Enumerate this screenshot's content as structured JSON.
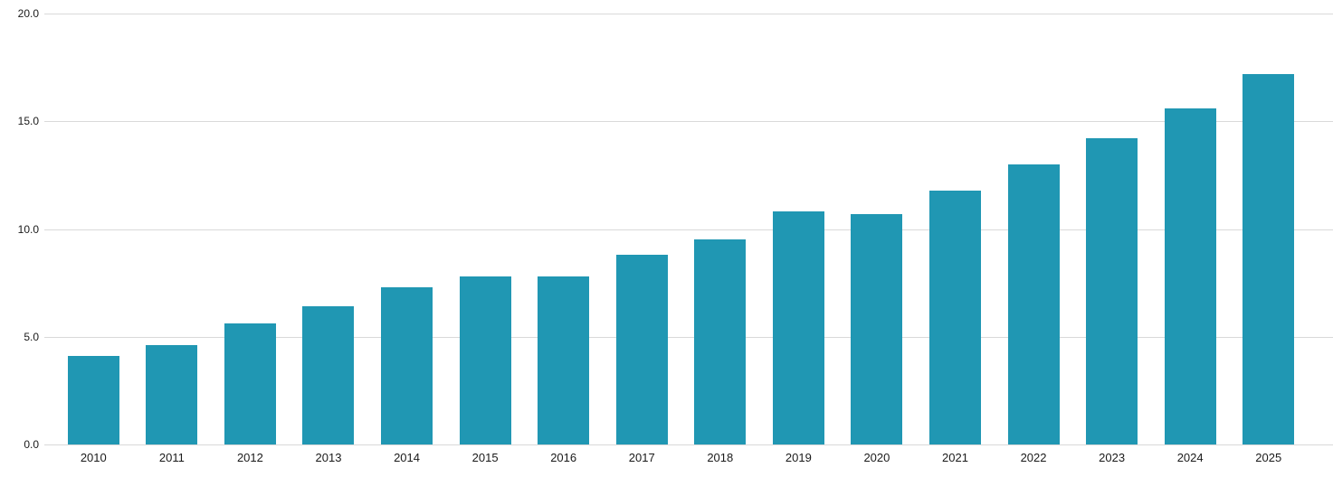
{
  "chart_data": {
    "type": "bar",
    "title": "",
    "xlabel": "",
    "ylabel": "",
    "categories": [
      "2010",
      "2011",
      "2012",
      "2013",
      "2014",
      "2015",
      "2016",
      "2017",
      "2018",
      "2019",
      "2020",
      "2021",
      "2022",
      "2023",
      "2024",
      "2025"
    ],
    "values": [
      4.1,
      4.6,
      5.6,
      6.4,
      7.3,
      7.8,
      7.8,
      8.8,
      9.5,
      10.8,
      10.7,
      11.8,
      13.0,
      14.2,
      15.6,
      17.2
    ],
    "ylim": [
      0,
      20
    ],
    "yticks": [
      0,
      5,
      10,
      15,
      20
    ],
    "ytick_labels": [
      "0.0",
      "5.0",
      "10.0",
      "15.0",
      "20.0"
    ],
    "grid": true,
    "legend_position": "none",
    "bar_color": "#2097b3",
    "gridline_color": "#d9d9d9",
    "axis_text_color": "#1a1a1a",
    "background_color": "#ffffff"
  }
}
